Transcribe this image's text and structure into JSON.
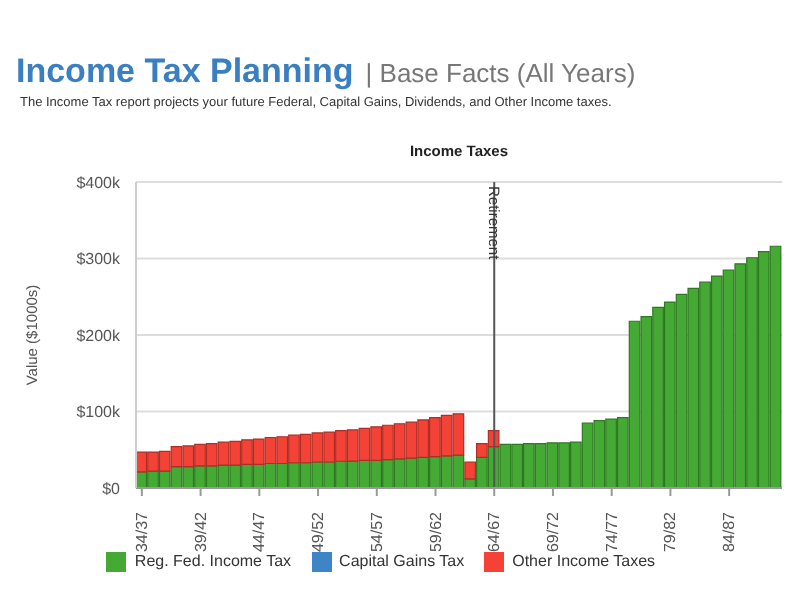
{
  "chart_data": {
    "type": "bar",
    "title": "Income Tax Planning",
    "subtitle": "| Base Facts (All Years)",
    "annotations": [
      "The Income Tax report projects your future Federal, Capital Gains, Dividends, and Other Income taxes.",
      "Income Taxes"
    ],
    "ylabel": "Value ($1000s)",
    "categories": [
      "34/37",
      null,
      null,
      null,
      null,
      "39/42",
      null,
      null,
      null,
      null,
      "44/47",
      null,
      null,
      null,
      null,
      "49/52",
      null,
      null,
      null,
      null,
      "54/57",
      null,
      null,
      null,
      null,
      "59/62",
      null,
      null,
      null,
      null,
      "64/67",
      null,
      null,
      null,
      null,
      "69/72",
      null,
      null,
      null,
      null,
      "74/77",
      null,
      null,
      null,
      null,
      "79/82",
      null,
      null,
      null,
      null,
      "84/87",
      null,
      null,
      null,
      null
    ],
    "ylim": [
      0,
      400
    ],
    "yticks": [
      {
        "value": 0,
        "label": "$0"
      },
      {
        "value": 100,
        "label": "$100k"
      },
      {
        "value": 200,
        "label": "$200k"
      },
      {
        "value": 300,
        "label": "$300k"
      },
      {
        "value": 400,
        "label": "$400k"
      }
    ],
    "stacked": true,
    "grid": "y",
    "legend": "bottom",
    "ref_lines": [
      {
        "axis": "x",
        "value": "64/67",
        "label": "Retirement",
        "color": "#555555"
      }
    ],
    "series": [
      {
        "name": "Reg. Fed. Income Tax",
        "color": "#44aa33",
        "values": [
          21,
          22,
          22,
          28,
          28,
          29,
          29,
          30,
          30,
          31,
          31,
          32,
          32,
          33,
          33,
          34,
          34,
          35,
          35,
          36,
          36,
          37,
          38,
          39,
          40,
          41,
          42,
          43,
          12,
          40,
          54,
          57,
          57,
          58,
          58,
          59,
          59,
          60,
          85,
          88,
          90,
          92,
          218,
          224,
          236,
          243,
          253,
          261,
          269,
          277,
          285,
          293,
          301,
          309,
          316
        ]
      },
      {
        "name": "Capital Gains Tax",
        "color": "#3d85c6",
        "values": [
          0,
          0,
          0,
          0,
          0,
          0,
          0,
          0,
          0,
          0,
          0,
          0,
          0,
          0,
          0,
          0,
          0,
          0,
          0,
          0,
          0,
          0,
          0,
          0,
          0,
          0,
          0,
          0,
          0,
          0,
          0,
          0,
          0,
          0,
          0,
          0,
          0,
          0,
          0,
          0,
          0,
          0,
          0,
          0,
          0,
          0,
          0,
          0,
          0,
          0,
          0,
          0,
          0,
          0,
          0
        ]
      },
      {
        "name": "Other Income Taxes",
        "color": "#f44336",
        "values": [
          26,
          25,
          26,
          26,
          27,
          28,
          29,
          30,
          31,
          32,
          33,
          34,
          35,
          36,
          37,
          38,
          39,
          40,
          41,
          42,
          44,
          45,
          46,
          47,
          49,
          51,
          53,
          54,
          22,
          18,
          21,
          0,
          0,
          0,
          0,
          0,
          0,
          0,
          0,
          0,
          0,
          0,
          0,
          0,
          0,
          0,
          0,
          0,
          0,
          0,
          0,
          0,
          0,
          0,
          0
        ]
      }
    ]
  }
}
